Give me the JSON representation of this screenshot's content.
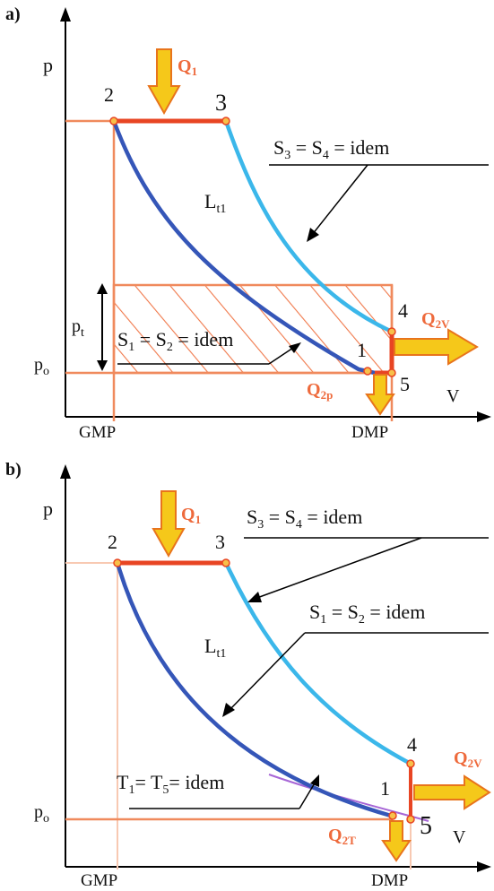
{
  "colors": {
    "axis": "#000000",
    "orange_line": "#f08a5d",
    "red_line": "#e84523",
    "blue_dark": "#3556b8",
    "blue_light": "#3bb7ea",
    "arrow_yellow": "#f5c81a",
    "arrow_orange": "#e8741c",
    "hatch": "#f0784a",
    "purple": "#a766d6"
  },
  "panel_a": {
    "tag": "a)",
    "axis_p": "p",
    "axis_v": "V",
    "pt_main": "p",
    "pt_sub": "t",
    "po_main": "p",
    "po_sub": "o",
    "gmp": "GMP",
    "dmp": "DMP",
    "pt1": "1",
    "pt2": "2",
    "pt3": "3",
    "pt4": "4",
    "pt5": "5",
    "q1_main": "Q",
    "q1_sub": "1",
    "q2v_main": "Q",
    "q2v_sub": "2V",
    "q2p_main": "Q",
    "q2p_sub": "2p",
    "lt_main": "L",
    "lt_sub": "t1",
    "s34": {
      "s": "S",
      "i3": "3",
      "eq": " = S",
      "i4": "4",
      "rest": " = idem"
    },
    "s12": {
      "s": "S",
      "i1": "1",
      "eq": " = S",
      "i2": "2",
      "rest": " = idem"
    }
  },
  "panel_b": {
    "tag": "b)",
    "axis_p": "p",
    "axis_v": "V",
    "po_main": "p",
    "po_sub": "o",
    "gmp": "GMP",
    "dmp": "DMP",
    "pt1": "1",
    "pt2": "2",
    "pt3": "3",
    "pt4": "4",
    "pt5": "5",
    "q1_main": "Q",
    "q1_sub": "1",
    "q2v_main": "Q",
    "q2v_sub": "2V",
    "q2t_main": "Q",
    "q2t_sub": "2T",
    "lt_main": "L",
    "lt_sub": "t1",
    "s34": {
      "s": "S",
      "i3": "3",
      "eq": " = S",
      "i4": "4",
      "rest": " = idem"
    },
    "s12": {
      "s": "S",
      "i1": "1",
      "eq": " = S",
      "i2": "2",
      "rest": " = idem"
    },
    "t15": {
      "t": "T",
      "i1": "1",
      "eq": "= T",
      "i5": "5",
      "rest": "= idem"
    }
  }
}
